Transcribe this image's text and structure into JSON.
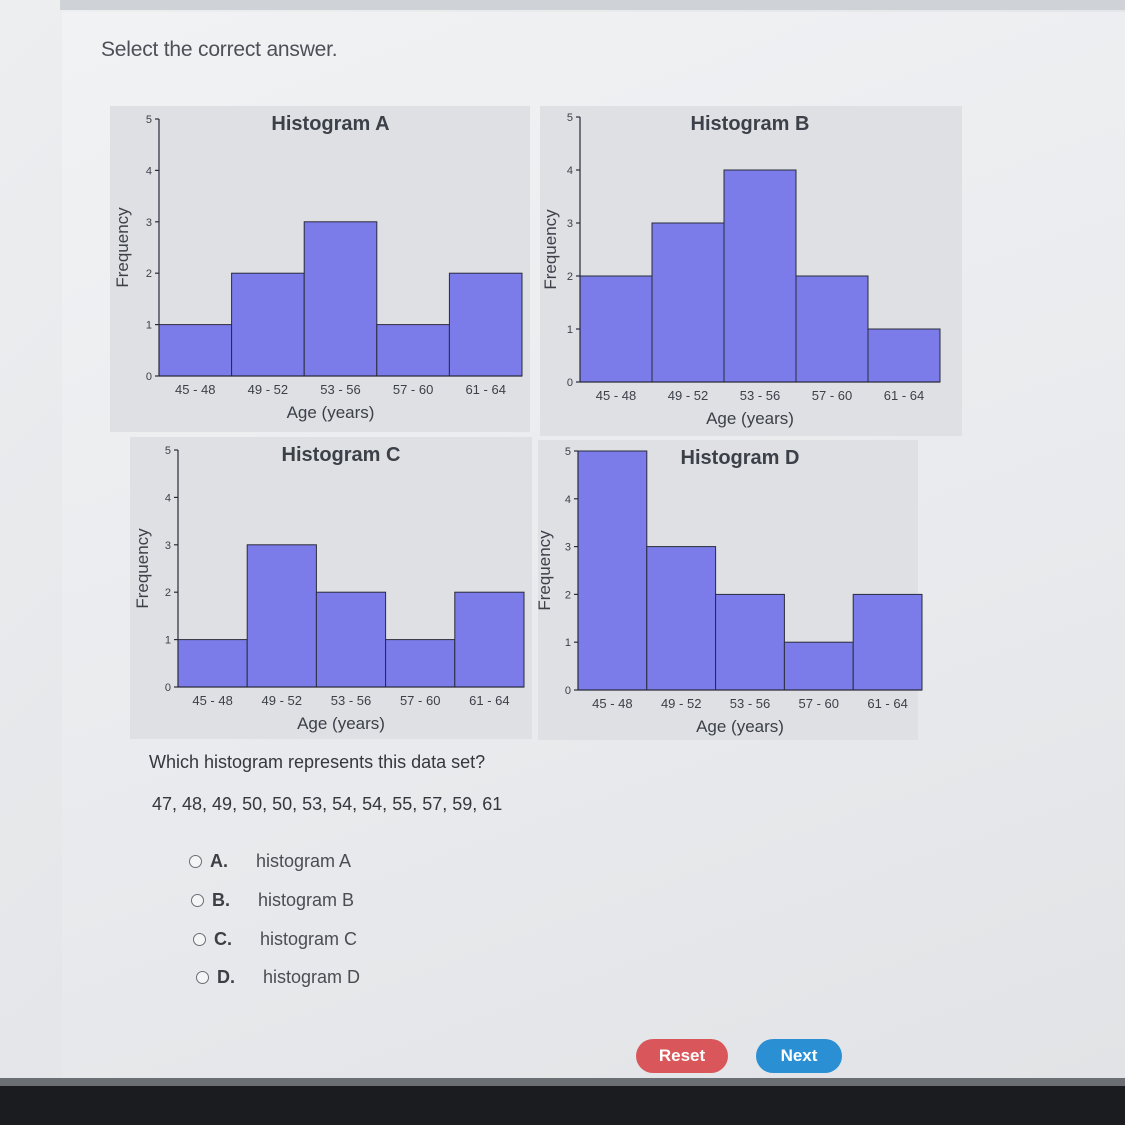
{
  "instruction": "Select the correct answer.",
  "chart_data": [
    {
      "type": "bar",
      "title": "Histogram A",
      "xlabel": "Age (years)",
      "ylabel": "Frequency",
      "categories": [
        "45 - 48",
        "49 - 52",
        "53 - 56",
        "57 - 60",
        "61 - 64"
      ],
      "values": [
        1,
        2,
        3,
        1,
        2
      ],
      "ylim": [
        0,
        5
      ],
      "yticks": [
        "0",
        "1",
        "2",
        "3",
        "4",
        "5"
      ]
    },
    {
      "type": "bar",
      "title": "Histogram B",
      "xlabel": "Age (years)",
      "ylabel": "Frequency",
      "categories": [
        "45 - 48",
        "49 - 52",
        "53 - 56",
        "57 - 60",
        "61 - 64"
      ],
      "values": [
        2,
        3,
        4,
        2,
        1
      ],
      "ylim": [
        0,
        5
      ],
      "yticks": [
        "0",
        "1",
        "2",
        "3",
        "4",
        "5"
      ]
    },
    {
      "type": "bar",
      "title": "Histogram C",
      "xlabel": "Age (years)",
      "ylabel": "Frequency",
      "categories": [
        "45 - 48",
        "49 - 52",
        "53 - 56",
        "57 - 60",
        "61 - 64"
      ],
      "values": [
        1,
        3,
        2,
        1,
        2
      ],
      "ylim": [
        0,
        5
      ],
      "yticks": [
        "0",
        "1",
        "2",
        "3",
        "4",
        "5"
      ]
    },
    {
      "type": "bar",
      "title": "Histogram D",
      "xlabel": "Age (years)",
      "ylabel": "Frequency",
      "categories": [
        "45 - 48",
        "49 - 52",
        "53 - 56",
        "57 - 60",
        "61 - 64"
      ],
      "values": [
        5,
        3,
        2,
        1,
        2
      ],
      "ylim": [
        0,
        5
      ],
      "yticks": [
        "0",
        "1",
        "2",
        "3",
        "4",
        "5"
      ]
    }
  ],
  "question": "Which histogram represents this data set?",
  "data_set": "47, 48, 49, 50, 50, 53, 54, 54, 55, 57, 59, 61",
  "options": [
    {
      "letter": "A.",
      "label": "histogram A"
    },
    {
      "letter": "B.",
      "label": "histogram B"
    },
    {
      "letter": "C.",
      "label": "histogram C"
    },
    {
      "letter": "D.",
      "label": "histogram D"
    }
  ],
  "buttons": {
    "reset": "Reset",
    "next": "Next"
  },
  "colors": {
    "bar_fill": "#7b7cea",
    "reset": "#d9575a",
    "next": "#2b8fd4"
  }
}
